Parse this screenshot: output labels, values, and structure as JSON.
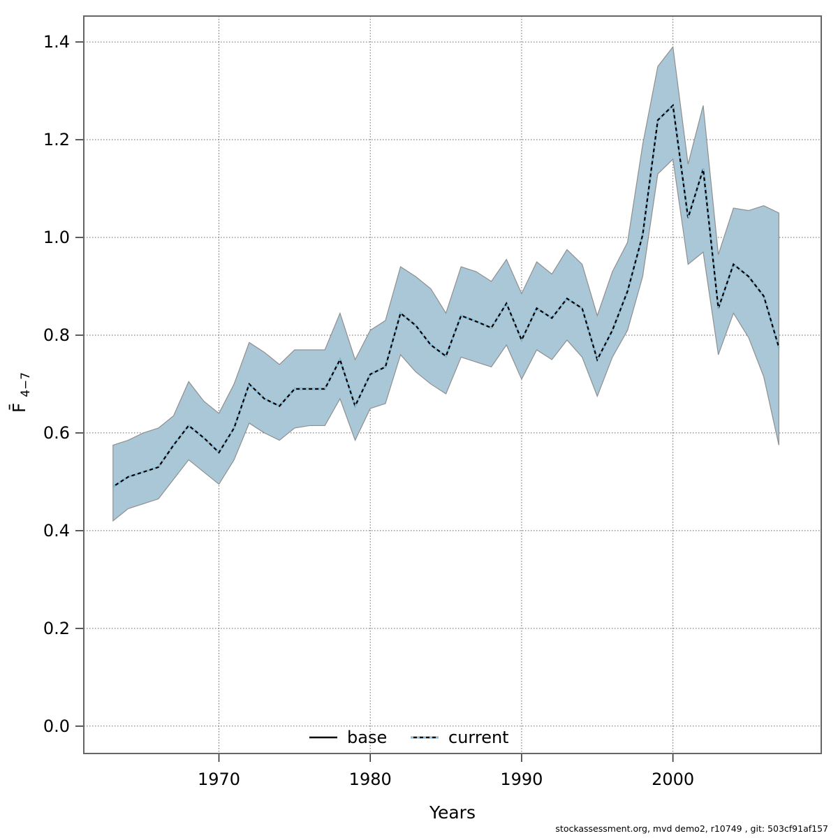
{
  "caption": "stockassessment.org, mvd demo2, r10749 , git: 503cf91af157",
  "labels": {
    "x": "Years",
    "y_main": "F̄",
    "y_sub": "4−7"
  },
  "legend": {
    "items": [
      {
        "label": "base"
      },
      {
        "label": "current"
      }
    ]
  },
  "colors": {
    "background": "#ffffff",
    "band_fill": "#a9c7d7",
    "band_edge": "#8f8f8f",
    "base_line": "#000000",
    "current_line": "#82bfe0",
    "grid": "#666666",
    "axis_border": "#666666",
    "tick": "#333333",
    "text": "#000000"
  },
  "chart_data": {
    "type": "line",
    "title": "",
    "xlabel": "Years",
    "ylabel": "F̄4−7",
    "ylabel_main": "F̄",
    "ylabel_sub": "4−7",
    "grid": true,
    "legend_position": "bottom-center",
    "xlim": [
      1961.07,
      2009.8
    ],
    "ylim": [
      -0.056,
      1.453
    ],
    "xticks": [
      1970,
      1980,
      1990,
      2000
    ],
    "yticks": [
      0.0,
      0.2,
      0.4,
      0.6,
      0.8,
      1.0,
      1.2,
      1.4
    ],
    "x": [
      1963,
      1964,
      1965,
      1966,
      1967,
      1968,
      1969,
      1970,
      1971,
      1972,
      1973,
      1974,
      1975,
      1976,
      1977,
      1978,
      1979,
      1980,
      1981,
      1982,
      1983,
      1984,
      1985,
      1986,
      1987,
      1988,
      1989,
      1990,
      1991,
      1992,
      1993,
      1994,
      1995,
      1996,
      1997,
      1998,
      1999,
      2000,
      2001,
      2002,
      2003,
      2004,
      2005,
      2006,
      2007
    ],
    "series": [
      {
        "name": "base",
        "values": [
          0.49,
          0.51,
          0.52,
          0.53,
          0.575,
          0.615,
          0.59,
          0.56,
          0.61,
          0.7,
          0.67,
          0.655,
          0.69,
          0.69,
          0.69,
          0.75,
          0.655,
          0.72,
          0.735,
          0.845,
          0.82,
          0.78,
          0.757,
          0.84,
          0.828,
          0.815,
          0.865,
          0.79,
          0.855,
          0.835,
          0.875,
          0.855,
          0.75,
          0.81,
          0.89,
          1.005,
          1.24,
          1.27,
          1.04,
          1.14,
          0.855,
          0.945,
          0.92,
          0.88,
          0.775
        ]
      },
      {
        "name": "current",
        "values": [
          0.49,
          0.51,
          0.52,
          0.53,
          0.575,
          0.615,
          0.59,
          0.56,
          0.61,
          0.7,
          0.67,
          0.655,
          0.69,
          0.69,
          0.69,
          0.75,
          0.655,
          0.72,
          0.735,
          0.845,
          0.82,
          0.78,
          0.757,
          0.84,
          0.828,
          0.815,
          0.865,
          0.79,
          0.855,
          0.835,
          0.875,
          0.855,
          0.75,
          0.81,
          0.89,
          1.005,
          1.24,
          1.27,
          1.04,
          1.14,
          0.855,
          0.945,
          0.92,
          0.88,
          0.775
        ],
        "ci_low": [
          0.42,
          0.445,
          0.455,
          0.465,
          0.505,
          0.545,
          0.52,
          0.495,
          0.545,
          0.62,
          0.6,
          0.585,
          0.61,
          0.615,
          0.615,
          0.67,
          0.585,
          0.65,
          0.66,
          0.76,
          0.725,
          0.7,
          0.68,
          0.755,
          0.745,
          0.735,
          0.78,
          0.71,
          0.77,
          0.75,
          0.79,
          0.755,
          0.675,
          0.755,
          0.81,
          0.92,
          1.13,
          1.16,
          0.945,
          0.97,
          0.76,
          0.845,
          0.795,
          0.715,
          0.575
        ],
        "ci_high": [
          0.575,
          0.585,
          0.6,
          0.61,
          0.635,
          0.705,
          0.665,
          0.64,
          0.7,
          0.785,
          0.765,
          0.74,
          0.77,
          0.77,
          0.77,
          0.845,
          0.75,
          0.81,
          0.83,
          0.94,
          0.92,
          0.895,
          0.845,
          0.94,
          0.93,
          0.91,
          0.955,
          0.885,
          0.95,
          0.925,
          0.975,
          0.945,
          0.84,
          0.93,
          0.99,
          1.19,
          1.35,
          1.39,
          1.15,
          1.27,
          0.965,
          1.06,
          1.055,
          1.065,
          1.05
        ]
      }
    ]
  }
}
